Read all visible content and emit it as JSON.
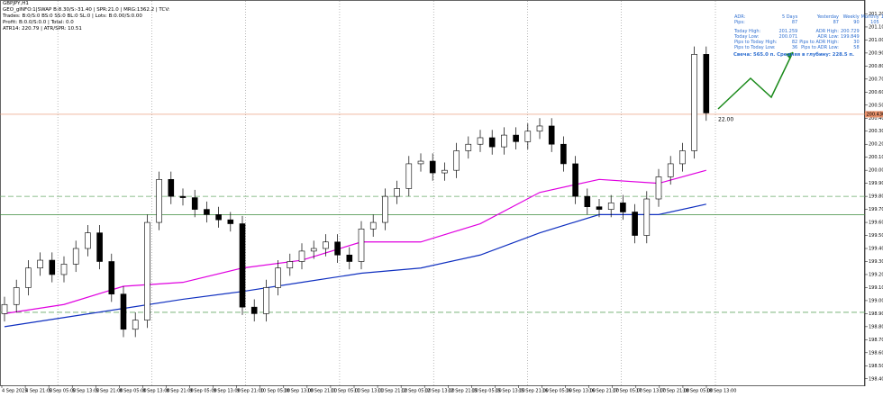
{
  "chart_data": {
    "type": "candlestick",
    "symbol": "GBPJPY,H1",
    "info_lines": [
      "GEO_gINFO:1|SWAP B:8.30/S:-31.40 | SPR:21.0 | MRG:1362.2 | TCV:",
      "Trades: B:0/S:0 BS:0 SS:0 BL:0 SL:0 | Lots: B:0.00/S:0.00",
      "Profit: B:0.0/S:0.0 | Total: 0.0",
      "ATR14: 220.79 | ATR/SPR: 10.51"
    ],
    "adr_panel": {
      "header": [
        "ADR:",
        "5 Days",
        "Yesterday",
        "Weekly",
        "Monthly",
        "180 Days"
      ],
      "pips": [
        "Pips:",
        "87",
        "87",
        "90",
        "105",
        "168"
      ],
      "rows": [
        [
          "Today High:",
          "201.259",
          "ADR High:",
          "200.729"
        ],
        [
          "Today Low:",
          "200.071",
          "ADR Low:",
          "199.849"
        ],
        [
          "Pips to Today High:",
          "82",
          "Pips to ADR High:",
          "30"
        ],
        [
          "Pips to Today Low:",
          "36",
          "Pips to ADR Low:",
          "58"
        ]
      ],
      "footer": "Свеча: 565.0 п. Средняя в глубину: 228.5 п."
    },
    "annotation": "22.00",
    "x_labels": [
      "4 Sep 2025",
      "4 Sep 21:00",
      "5 Sep 05:00",
      "5 Sep 13:00",
      "5 Sep 21:00",
      "8 Sep 05:00",
      "8 Sep 13:00",
      "8 Sep 21:00",
      "9 Sep 05:00",
      "9 Sep 13:00",
      "9 Sep 21:00",
      "10 Sep 05:00",
      "10 Sep 13:00",
      "10 Sep 21:00",
      "11 Sep 05:00",
      "11 Sep 13:00",
      "11 Sep 21:00",
      "12 Sep 05:00",
      "12 Sep 13:00",
      "12 Sep 21:00",
      "15 Sep 05:00",
      "15 Sep 13:00",
      "15 Sep 21:00",
      "16 Sep 05:00",
      "16 Sep 13:00",
      "16 Sep 21:00",
      "17 Sep 05:00",
      "17 Sep 13:00",
      "17 Sep 21:00",
      "18 Sep 05:00",
      "18 Sep 13:00"
    ],
    "opens": [
      198.9,
      198.97,
      199.1,
      199.25,
      199.31,
      199.2,
      199.28,
      199.4,
      199.52,
      199.3,
      199.05,
      198.78,
      198.85,
      199.6,
      199.93,
      199.8,
      199.79,
      199.7,
      199.66,
      199.62,
      199.59,
      198.95,
      198.9,
      199.1,
      199.25,
      199.3,
      199.38,
      199.4,
      199.45,
      199.35,
      199.3,
      199.55,
      199.6,
      199.8,
      199.86,
      200.05,
      200.07,
      199.98,
      200.0,
      200.15,
      200.2,
      200.25,
      200.18,
      200.27,
      200.22,
      200.3,
      200.34,
      200.2,
      200.05,
      199.8,
      199.72,
      199.7,
      199.75,
      199.68,
      199.5,
      199.78,
      199.95,
      200.05,
      200.15,
      200.89
    ],
    "highs": [
      199.03,
      199.16,
      199.31,
      199.37,
      199.37,
      199.34,
      199.46,
      199.58,
      199.58,
      199.36,
      199.11,
      198.91,
      199.66,
      199.99,
      199.99,
      199.86,
      199.85,
      199.76,
      199.72,
      199.68,
      199.65,
      199.01,
      199.16,
      199.31,
      199.36,
      199.44,
      199.46,
      199.51,
      199.51,
      199.41,
      199.61,
      199.66,
      199.86,
      199.92,
      200.11,
      200.13,
      200.13,
      200.06,
      200.21,
      200.26,
      200.31,
      200.31,
      200.33,
      200.33,
      200.36,
      200.4,
      200.4,
      200.26,
      200.11,
      199.86,
      199.78,
      199.81,
      199.81,
      199.74,
      199.84,
      200.01,
      200.11,
      200.21,
      200.95,
      200.95
    ],
    "lows": [
      198.84,
      198.91,
      199.04,
      199.19,
      199.14,
      199.14,
      199.22,
      199.34,
      199.24,
      198.99,
      198.72,
      198.72,
      198.79,
      199.54,
      199.74,
      199.73,
      199.64,
      199.6,
      199.56,
      199.53,
      198.89,
      198.84,
      198.84,
      199.04,
      199.19,
      199.24,
      199.32,
      199.34,
      199.29,
      199.24,
      199.24,
      199.49,
      199.54,
      199.74,
      199.8,
      199.99,
      199.92,
      199.92,
      199.94,
      200.09,
      200.14,
      200.12,
      200.12,
      200.16,
      200.16,
      200.24,
      200.14,
      199.99,
      199.74,
      199.66,
      199.64,
      199.64,
      199.62,
      199.44,
      199.44,
      199.72,
      199.89,
      199.99,
      200.09,
      200.38
    ],
    "closes": [
      198.97,
      199.1,
      199.25,
      199.31,
      199.2,
      199.28,
      199.4,
      199.52,
      199.3,
      199.05,
      198.78,
      198.85,
      199.6,
      199.93,
      199.8,
      199.79,
      199.7,
      199.66,
      199.62,
      199.59,
      198.95,
      198.9,
      199.1,
      199.25,
      199.3,
      199.38,
      199.4,
      199.45,
      199.35,
      199.3,
      199.55,
      199.6,
      199.8,
      199.86,
      200.05,
      200.07,
      199.98,
      200.0,
      200.15,
      200.2,
      200.25,
      200.18,
      200.27,
      200.22,
      200.3,
      200.34,
      200.2,
      200.05,
      199.8,
      199.72,
      199.7,
      199.75,
      199.68,
      199.5,
      199.78,
      199.95,
      200.05,
      200.15,
      200.89,
      200.44
    ],
    "lines": [
      {
        "color": "#e000e0",
        "x": [
          0,
          5,
          10,
          15,
          20,
          25,
          30,
          35,
          40,
          45,
          50,
          55,
          59
        ],
        "values": [
          198.9,
          198.97,
          199.11,
          199.14,
          199.25,
          199.31,
          199.45,
          199.45,
          199.59,
          199.83,
          199.93,
          199.9,
          200.0
        ]
      },
      {
        "color": "#1030c0",
        "x": [
          0,
          5,
          10,
          15,
          20,
          25,
          30,
          35,
          40,
          45,
          50,
          55,
          59
        ],
        "values": [
          198.8,
          198.87,
          198.94,
          199.01,
          199.07,
          199.14,
          199.21,
          199.25,
          199.35,
          199.52,
          199.66,
          199.66,
          199.74
        ]
      }
    ],
    "levels": [
      {
        "value": 199.8,
        "style": "dashed",
        "color": "#6aaa6a"
      },
      {
        "value": 199.66,
        "style": "solid",
        "color": "#3a8a3a"
      },
      {
        "value": 198.91,
        "style": "dashed",
        "color": "#6aaa6a"
      }
    ],
    "price": {
      "value": 200.43,
      "label": "200.430",
      "color": "#e8906a"
    },
    "ylim": [
      198.35,
      201.3
    ],
    "yticks": [
      {
        "value": 198.4,
        "label": "198.400"
      },
      {
        "value": 198.5,
        "label": "198.500"
      },
      {
        "value": 198.6,
        "label": "198.600"
      },
      {
        "value": 198.7,
        "label": "198.700"
      },
      {
        "value": 198.8,
        "label": "198.800"
      },
      {
        "value": 198.9,
        "label": "198.900"
      },
      {
        "value": 199.0,
        "label": "199.000"
      },
      {
        "value": 199.1,
        "label": "199.100"
      },
      {
        "value": 199.2,
        "label": "199.200"
      },
      {
        "value": 199.3,
        "label": "199.300"
      },
      {
        "value": 199.4,
        "label": "199.400"
      },
      {
        "value": 199.5,
        "label": "199.500"
      },
      {
        "value": 199.6,
        "label": "199.600"
      },
      {
        "value": 199.7,
        "label": "199.700"
      },
      {
        "value": 199.8,
        "label": "199.800"
      },
      {
        "value": 199.9,
        "label": "199.900"
      },
      {
        "value": 200.0,
        "label": "200.000"
      },
      {
        "value": 200.1,
        "label": "200.100"
      },
      {
        "value": 200.2,
        "label": "200.200"
      },
      {
        "value": 200.3,
        "label": "200.300"
      },
      {
        "value": 200.4,
        "label": "200.400"
      },
      {
        "value": 200.5,
        "label": "200.500"
      },
      {
        "value": 200.6,
        "label": "200.600"
      },
      {
        "value": 200.7,
        "label": "200.700"
      },
      {
        "value": 200.8,
        "label": "200.800"
      },
      {
        "value": 200.9,
        "label": "200.900"
      },
      {
        "value": 201.0,
        "label": "201.000"
      },
      {
        "value": 201.1,
        "label": "201.100"
      },
      {
        "value": 201.2,
        "label": "201.200"
      }
    ]
  }
}
